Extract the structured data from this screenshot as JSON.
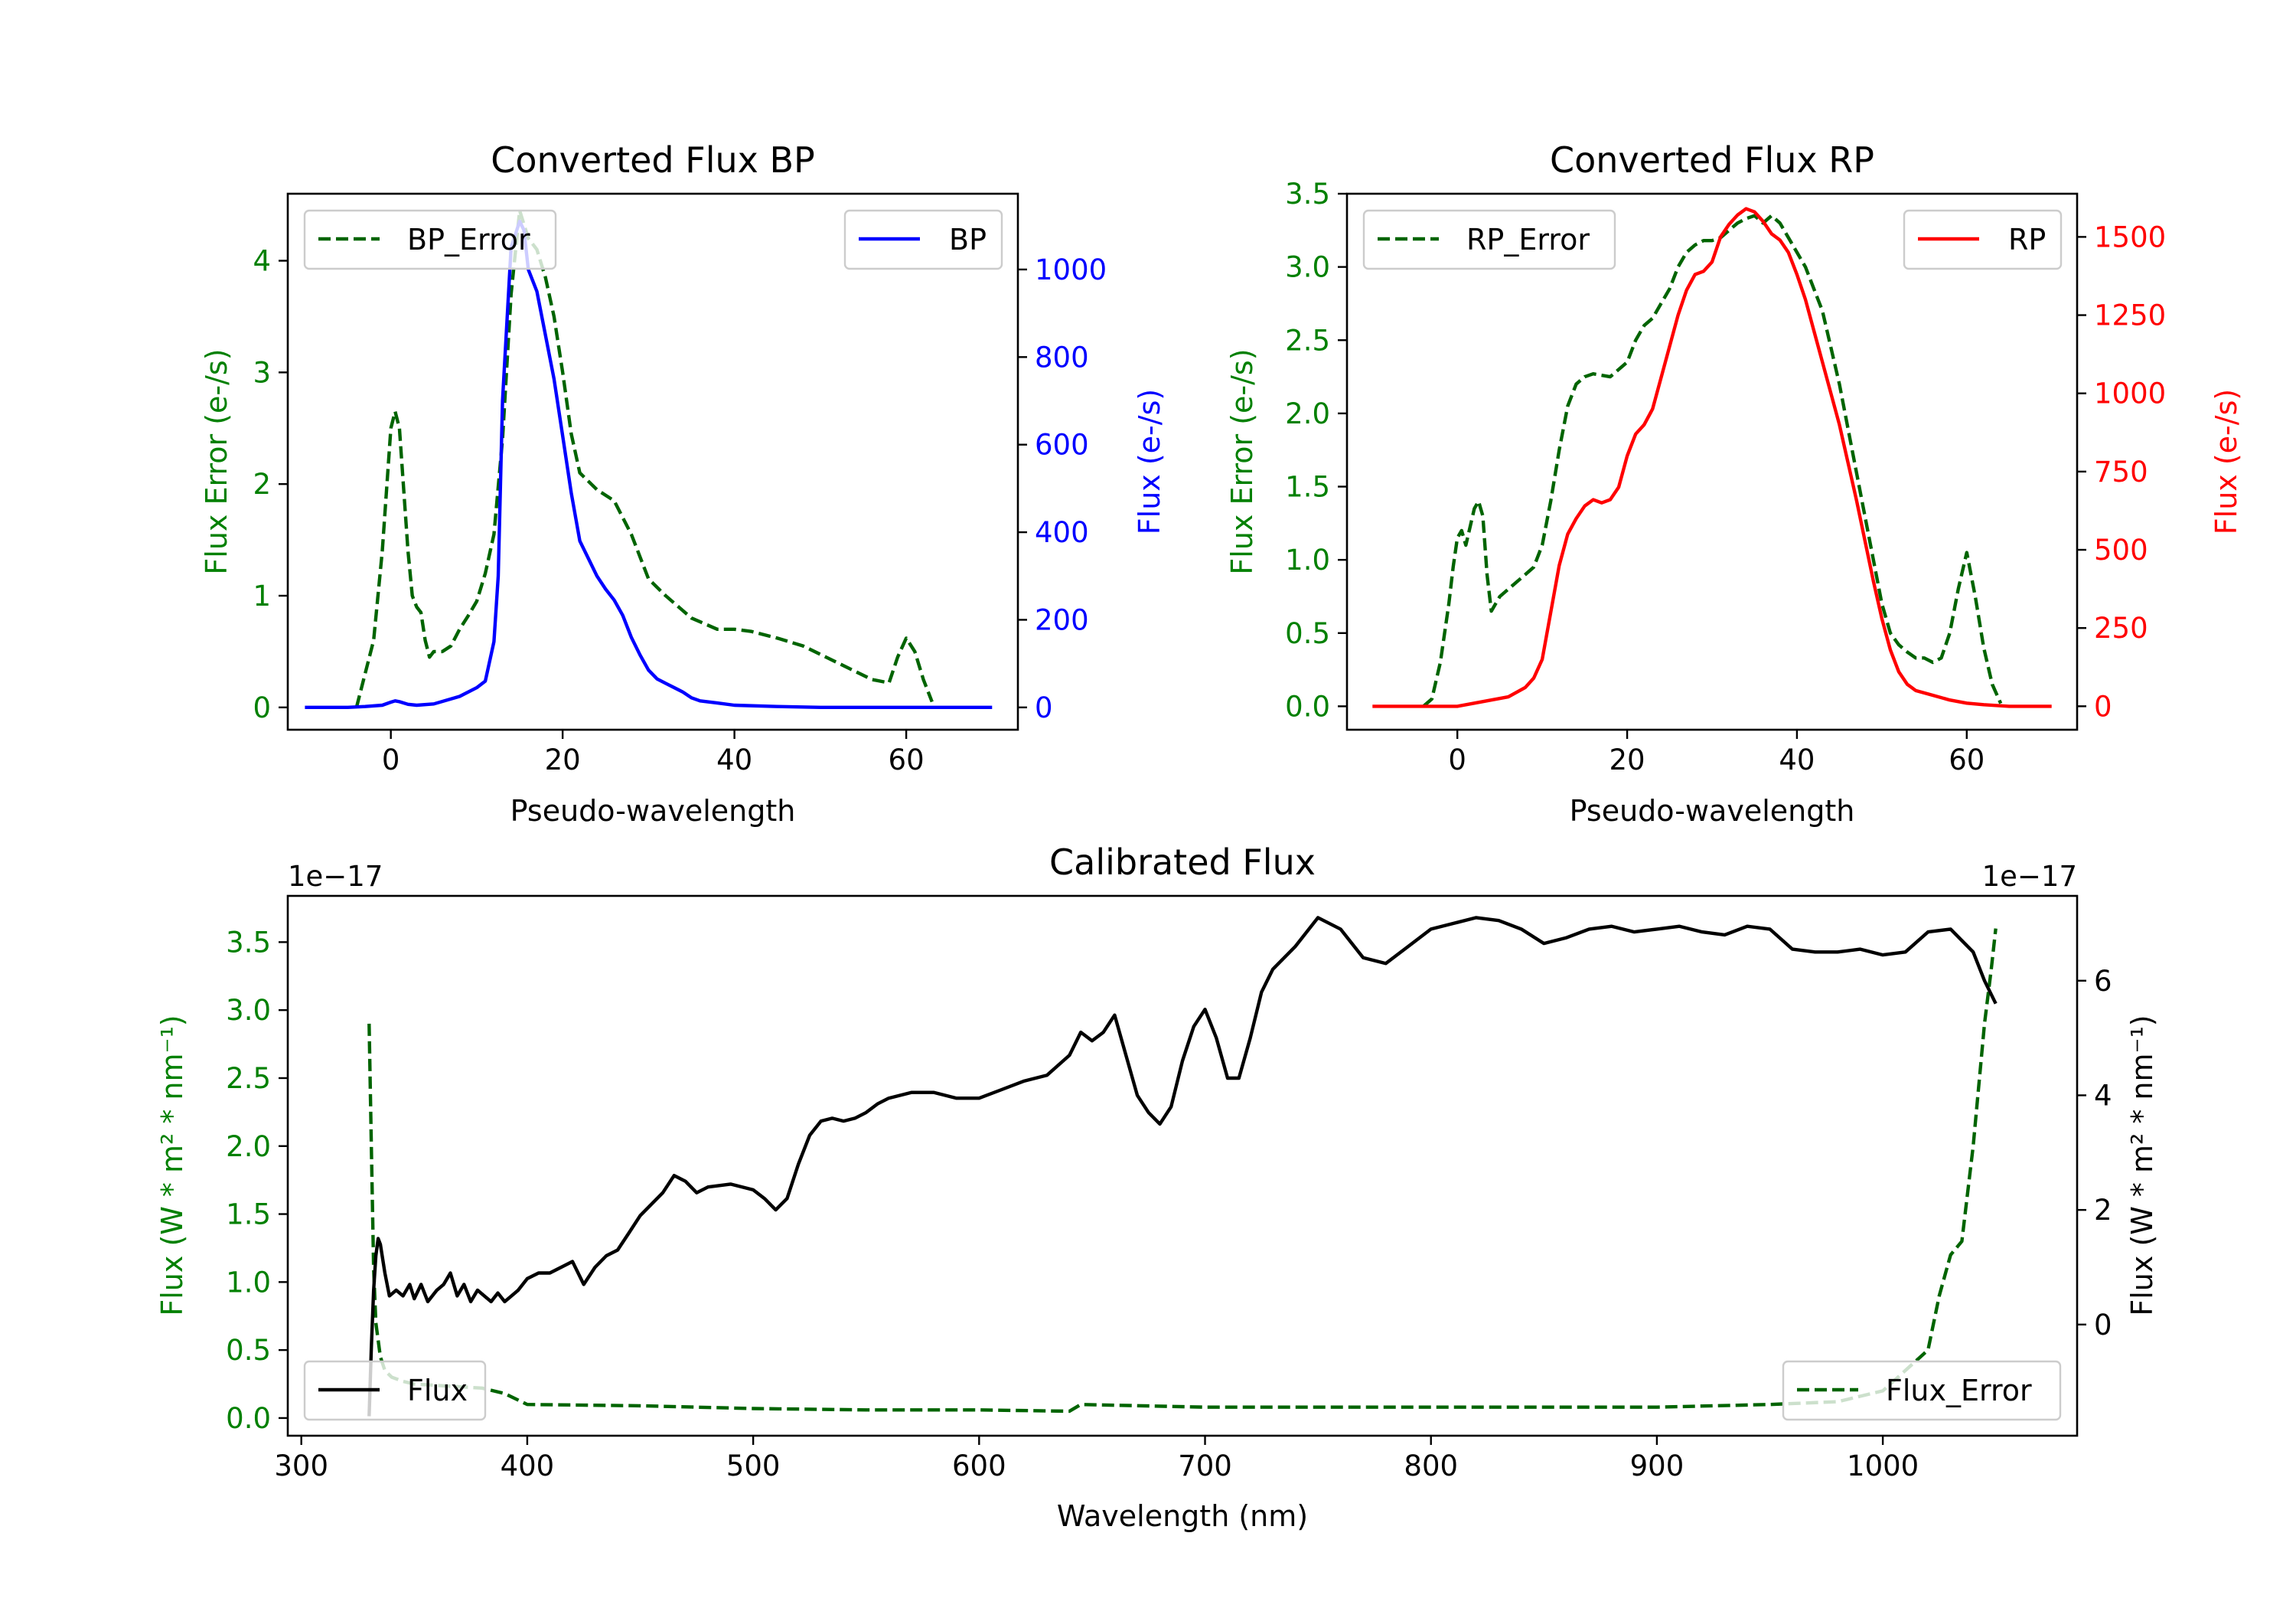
{
  "chart_data": [
    {
      "id": "bp",
      "type": "line",
      "title": "Converted Flux BP",
      "xlabel": "Pseudo-wavelength",
      "ylabel_left": "Flux Error (e-/s)",
      "ylabel_right": "Flux (e-/s)",
      "xlim": [
        -12,
        73
      ],
      "ylim_left": [
        -0.2,
        4.6
      ],
      "ylim_right": [
        -51,
        1173
      ],
      "xticks": [
        0,
        20,
        40,
        60
      ],
      "yticks_left": [
        0,
        1,
        2,
        3,
        4
      ],
      "yticks_right": [
        0,
        200,
        400,
        600,
        800,
        1000
      ],
      "left_color": "#008000",
      "right_color": "#0000ff",
      "legend": [
        {
          "label": "BP_Error",
          "style": "dashed",
          "color": "#006400",
          "location": "upper left"
        },
        {
          "label": "BP",
          "style": "solid",
          "color": "#0000ff",
          "location": "upper right"
        }
      ],
      "series": [
        {
          "name": "BP_Error",
          "axis": "left",
          "color": "#006400",
          "style": "dashed",
          "x": [
            -4,
            -2,
            -1,
            0,
            0.5,
            1,
            2,
            2.5,
            3,
            3.5,
            4,
            4.5,
            5,
            6,
            7,
            8,
            9,
            10,
            11,
            12,
            13,
            14,
            15,
            16,
            17,
            18,
            19,
            20,
            21,
            22,
            24,
            26,
            28,
            30,
            32,
            35,
            38,
            40,
            42,
            45,
            48,
            52,
            56,
            58,
            59,
            60,
            61,
            62,
            63
          ],
          "y": [
            0,
            0.6,
            1.4,
            2.5,
            2.65,
            2.5,
            1.4,
            1.0,
            0.9,
            0.85,
            0.6,
            0.45,
            0.5,
            0.5,
            0.55,
            0.7,
            0.82,
            0.95,
            1.2,
            1.55,
            2.4,
            3.7,
            4.45,
            4.2,
            4.1,
            3.85,
            3.5,
            3.0,
            2.45,
            2.1,
            1.95,
            1.85,
            1.55,
            1.15,
            1.0,
            0.8,
            0.7,
            0.7,
            0.68,
            0.62,
            0.55,
            0.4,
            0.25,
            0.22,
            0.45,
            0.62,
            0.5,
            0.25,
            0.05
          ]
        },
        {
          "name": "BP",
          "axis": "right",
          "color": "#0000ff",
          "style": "solid",
          "x": [
            -10,
            -5,
            -3,
            -1,
            0,
            0.5,
            1,
            2,
            3,
            5,
            8,
            10,
            11,
            12,
            12.5,
            13,
            14,
            15,
            15.5,
            16,
            17,
            18,
            19,
            20,
            21,
            22,
            23,
            24,
            25,
            26,
            27,
            28,
            29,
            30,
            31,
            32,
            33,
            34,
            35,
            36,
            38,
            40,
            45,
            50,
            55,
            60,
            65,
            70
          ],
          "y": [
            0,
            0,
            2,
            5,
            12,
            15,
            13,
            7,
            5,
            8,
            25,
            45,
            60,
            150,
            300,
            700,
            1050,
            1110,
            1090,
            1000,
            950,
            850,
            750,
            620,
            490,
            380,
            340,
            300,
            270,
            245,
            210,
            160,
            120,
            85,
            65,
            55,
            45,
            35,
            22,
            15,
            10,
            5,
            2,
            0,
            0,
            0,
            0,
            0
          ]
        }
      ]
    },
    {
      "id": "rp",
      "type": "line",
      "title": "Converted Flux RP",
      "xlabel": "Pseudo-wavelength",
      "ylabel_left": "Flux Error (e-/s)",
      "ylabel_right": "Flux (e-/s)",
      "xlim": [
        -13,
        73
      ],
      "ylim_left": [
        -0.16,
        3.5
      ],
      "ylim_right": [
        -75,
        1638
      ],
      "xticks": [
        0,
        20,
        40,
        60
      ],
      "yticks_left": [
        0.0,
        0.5,
        1.0,
        1.5,
        2.0,
        2.5,
        3.0,
        3.5
      ],
      "yticks_right": [
        0,
        250,
        500,
        750,
        1000,
        1250,
        1500
      ],
      "left_color": "#008000",
      "right_color": "#ff0000",
      "legend": [
        {
          "label": "RP_Error",
          "style": "dashed",
          "color": "#006400",
          "location": "upper left"
        },
        {
          "label": "RP",
          "style": "solid",
          "color": "#ff0000",
          "location": "upper right"
        }
      ],
      "series": [
        {
          "name": "RP_Error",
          "axis": "left",
          "color": "#006400",
          "style": "dashed",
          "x": [
            -4,
            -3,
            -2,
            -1,
            -0.5,
            0,
            0.5,
            1,
            2,
            2.5,
            3,
            3.5,
            4,
            5,
            6,
            8,
            9,
            10,
            11,
            12,
            13,
            14,
            15,
            16,
            18,
            20,
            21,
            22,
            23,
            24,
            25,
            26,
            27,
            28,
            29,
            30,
            31,
            32,
            33,
            34,
            35,
            36,
            37,
            38,
            39,
            40,
            41,
            42,
            43,
            44,
            45,
            46,
            47,
            48,
            49,
            50,
            51,
            52,
            53,
            54,
            55,
            56,
            57,
            58,
            59,
            60,
            61,
            62,
            63,
            64
          ],
          "y": [
            0.0,
            0.05,
            0.3,
            0.7,
            0.95,
            1.15,
            1.2,
            1.1,
            1.35,
            1.4,
            1.3,
            0.9,
            0.65,
            0.75,
            0.8,
            0.9,
            0.95,
            1.1,
            1.4,
            1.75,
            2.05,
            2.2,
            2.25,
            2.27,
            2.25,
            2.35,
            2.5,
            2.6,
            2.65,
            2.75,
            2.85,
            3.0,
            3.1,
            3.15,
            3.18,
            3.18,
            3.2,
            3.25,
            3.3,
            3.33,
            3.35,
            3.3,
            3.35,
            3.3,
            3.2,
            3.1,
            3.0,
            2.85,
            2.7,
            2.45,
            2.2,
            1.9,
            1.6,
            1.3,
            1.0,
            0.7,
            0.5,
            0.42,
            0.37,
            0.33,
            0.33,
            0.3,
            0.33,
            0.5,
            0.8,
            1.05,
            0.75,
            0.4,
            0.15,
            0.02
          ]
        },
        {
          "name": "RP",
          "axis": "right",
          "color": "#ff0000",
          "style": "solid",
          "x": [
            -10,
            -5,
            0,
            2,
            4,
            6,
            8,
            9,
            10,
            11,
            12,
            13,
            14,
            15,
            16,
            17,
            18,
            19,
            20,
            21,
            22,
            23,
            24,
            25,
            26,
            27,
            28,
            29,
            30,
            31,
            32,
            33,
            34,
            35,
            36,
            37,
            38,
            39,
            40,
            41,
            42,
            43,
            44,
            45,
            46,
            47,
            48,
            49,
            50,
            51,
            52,
            53,
            54,
            56,
            58,
            60,
            62,
            65,
            70
          ],
          "y": [
            0,
            0,
            0,
            10,
            20,
            30,
            60,
            90,
            150,
            300,
            450,
            550,
            600,
            640,
            660,
            650,
            660,
            700,
            800,
            870,
            900,
            950,
            1050,
            1150,
            1250,
            1330,
            1380,
            1390,
            1420,
            1500,
            1540,
            1570,
            1590,
            1580,
            1550,
            1510,
            1490,
            1450,
            1380,
            1300,
            1200,
            1100,
            1000,
            900,
            780,
            660,
            530,
            400,
            280,
            180,
            110,
            70,
            50,
            35,
            20,
            10,
            5,
            0,
            0
          ]
        }
      ]
    },
    {
      "id": "calibrated",
      "type": "line",
      "title": "Calibrated Flux",
      "xlabel": "Wavelength (nm)",
      "ylabel_left": "Flux (W * m² * nm⁻¹)",
      "ylabel_right": "Flux (W * m² * nm⁻¹)",
      "offset_left": "1e−17",
      "offset_right": "1e−17",
      "xlim": [
        294,
        1086
      ],
      "ylim_left": [
        -0.13,
        3.84
      ],
      "ylim_right": [
        -1.94,
        7.48
      ],
      "xticks": [
        300,
        400,
        500,
        600,
        700,
        800,
        900,
        1000
      ],
      "yticks_left": [
        0.0,
        0.5,
        1.0,
        1.5,
        2.0,
        2.5,
        3.0,
        3.5
      ],
      "yticks_right": [
        0,
        2,
        4,
        6
      ],
      "left_color": "#008000",
      "right_color": "#000000",
      "legend": [
        {
          "label": "Flux",
          "style": "solid",
          "color": "#000000",
          "location": "lower left"
        },
        {
          "label": "Flux_Error",
          "style": "dashed",
          "color": "#006400",
          "location": "lower right"
        }
      ],
      "series": [
        {
          "name": "Flux_Error",
          "axis": "left",
          "color": "#006400",
          "style": "dashed",
          "x": [
            330,
            331,
            332,
            333,
            335,
            337,
            340,
            345,
            350,
            360,
            370,
            380,
            390,
            400,
            450,
            500,
            550,
            600,
            640,
            645,
            700,
            800,
            900,
            950,
            980,
            1000,
            1010,
            1020,
            1025,
            1030,
            1035,
            1040,
            1045,
            1048,
            1050
          ],
          "y": [
            2.9,
            2.0,
            1.1,
            0.7,
            0.45,
            0.35,
            0.3,
            0.27,
            0.25,
            0.24,
            0.23,
            0.22,
            0.18,
            0.1,
            0.09,
            0.07,
            0.06,
            0.06,
            0.05,
            0.1,
            0.08,
            0.08,
            0.08,
            0.1,
            0.12,
            0.2,
            0.35,
            0.5,
            0.9,
            1.2,
            1.3,
            2.0,
            2.9,
            3.3,
            3.6
          ]
        },
        {
          "name": "Flux",
          "axis": "right",
          "color": "#000000",
          "style": "solid",
          "x": [
            330,
            331,
            332,
            333,
            334,
            335,
            337,
            339,
            342,
            345,
            348,
            350,
            353,
            356,
            360,
            363,
            366,
            369,
            372,
            375,
            378,
            381,
            384,
            387,
            390,
            393,
            396,
            400,
            405,
            410,
            415,
            420,
            425,
            430,
            435,
            440,
            445,
            450,
            455,
            460,
            465,
            470,
            475,
            480,
            490,
            500,
            505,
            510,
            515,
            520,
            525,
            530,
            535,
            540,
            545,
            550,
            555,
            560,
            570,
            580,
            590,
            600,
            610,
            620,
            630,
            640,
            645,
            650,
            655,
            660,
            665,
            670,
            675,
            680,
            685,
            690,
            695,
            700,
            705,
            710,
            715,
            720,
            725,
            730,
            740,
            750,
            760,
            770,
            780,
            790,
            800,
            810,
            820,
            830,
            840,
            850,
            860,
            870,
            880,
            890,
            900,
            910,
            920,
            930,
            940,
            950,
            960,
            970,
            980,
            990,
            1000,
            1010,
            1020,
            1030,
            1040,
            1045,
            1050
          ],
          "y": [
            -1.6,
            -0.4,
            0.6,
            1.2,
            1.5,
            1.4,
            0.9,
            0.5,
            0.6,
            0.5,
            0.7,
            0.45,
            0.7,
            0.4,
            0.6,
            0.7,
            0.9,
            0.5,
            0.7,
            0.4,
            0.6,
            0.5,
            0.4,
            0.55,
            0.4,
            0.5,
            0.6,
            0.8,
            0.9,
            0.9,
            1.0,
            1.1,
            0.7,
            1.0,
            1.2,
            1.3,
            1.6,
            1.9,
            2.1,
            2.3,
            2.6,
            2.5,
            2.3,
            2.4,
            2.45,
            2.35,
            2.2,
            2.0,
            2.2,
            2.8,
            3.3,
            3.55,
            3.6,
            3.55,
            3.6,
            3.7,
            3.85,
            3.95,
            4.05,
            4.05,
            3.95,
            3.95,
            4.1,
            4.25,
            4.35,
            4.7,
            5.1,
            4.95,
            5.1,
            5.4,
            4.7,
            4.0,
            3.7,
            3.5,
            3.8,
            4.6,
            5.2,
            5.5,
            5.0,
            4.3,
            4.3,
            5.0,
            5.8,
            6.2,
            6.6,
            7.1,
            6.9,
            6.4,
            6.3,
            6.6,
            6.9,
            7.0,
            7.1,
            7.05,
            6.9,
            6.65,
            6.75,
            6.9,
            6.95,
            6.85,
            6.9,
            6.95,
            6.85,
            6.8,
            6.95,
            6.9,
            6.55,
            6.5,
            6.5,
            6.55,
            6.45,
            6.5,
            6.85,
            6.9,
            6.5,
            6.0,
            5.6
          ]
        }
      ]
    }
  ]
}
